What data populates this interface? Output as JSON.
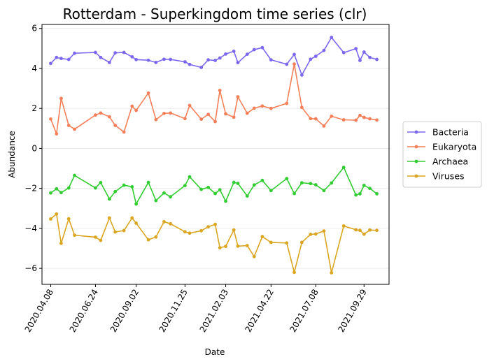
{
  "chart_data": {
    "type": "line",
    "title": "Rotterdam - Superkingdom time series (clr)",
    "xlabel": "Date",
    "ylabel": "Abundance",
    "ylim": [
      -6.8,
      6.2
    ],
    "yticks": [
      -6,
      -4,
      -2,
      0,
      2,
      4,
      6
    ],
    "xlim": [
      "2020-03-24",
      "2021-11-11"
    ],
    "xticks": [
      "2020.04.08",
      "2020.06.24",
      "2020.09.02",
      "2020.11.25",
      "2021.02.03",
      "2021.04.22",
      "2021.07.08",
      "2021.09.29"
    ],
    "grid": "horizontal",
    "legend_position": "outside-right",
    "x": [
      "2020-04-08",
      "2020-04-18",
      "2020-04-26",
      "2020-05-09",
      "2020-05-19",
      "2020-06-24",
      "2020-07-03",
      "2020-07-18",
      "2020-07-28",
      "2020-08-12",
      "2020-08-26",
      "2020-09-02",
      "2020-09-23",
      "2020-10-06",
      "2020-10-20",
      "2020-10-31",
      "2020-11-25",
      "2020-12-03",
      "2020-12-23",
      "2021-01-04",
      "2021-01-16",
      "2021-01-24",
      "2021-02-03",
      "2021-02-17",
      "2021-02-24",
      "2021-03-12",
      "2021-03-24",
      "2021-04-07",
      "2021-04-22",
      "2021-05-19",
      "2021-06-01",
      "2021-06-14",
      "2021-06-29",
      "2021-07-08",
      "2021-07-22",
      "2021-08-04",
      "2021-08-25",
      "2021-09-15",
      "2021-09-22",
      "2021-09-29",
      "2021-10-09",
      "2021-10-21"
    ],
    "series": [
      {
        "name": "Bacteria",
        "color": "#7b68ee",
        "values": [
          4.25,
          4.55,
          4.5,
          4.45,
          4.76,
          4.8,
          4.55,
          4.3,
          4.78,
          4.8,
          4.58,
          4.44,
          4.41,
          4.3,
          4.46,
          4.45,
          4.33,
          4.2,
          4.05,
          4.43,
          4.4,
          4.52,
          4.72,
          4.86,
          4.29,
          4.71,
          4.94,
          5.04,
          4.43,
          4.21,
          4.7,
          3.67,
          4.46,
          4.61,
          4.9,
          5.55,
          4.79,
          4.99,
          4.4,
          4.82,
          4.55,
          4.45
        ]
      },
      {
        "name": "Eukaryota",
        "color": "#f4805a",
        "values": [
          1.47,
          0.73,
          2.5,
          1.15,
          0.96,
          1.67,
          1.77,
          1.58,
          1.15,
          0.82,
          2.11,
          1.9,
          2.77,
          1.44,
          1.75,
          1.77,
          1.49,
          2.15,
          1.46,
          1.7,
          1.34,
          2.9,
          1.73,
          1.56,
          2.58,
          1.76,
          2.01,
          2.12,
          2.0,
          2.25,
          4.22,
          2.05,
          1.49,
          1.48,
          1.12,
          1.61,
          1.43,
          1.41,
          1.65,
          1.55,
          1.48,
          1.42
        ]
      },
      {
        "name": "Archaea",
        "color": "#32cd32",
        "values": [
          -2.23,
          -2.02,
          -2.21,
          -1.98,
          -1.35,
          -1.98,
          -1.71,
          -2.53,
          -2.16,
          -1.84,
          -1.92,
          -2.78,
          -1.7,
          -2.61,
          -2.23,
          -2.42,
          -1.86,
          -1.42,
          -2.05,
          -1.95,
          -2.26,
          -2.07,
          -2.64,
          -1.7,
          -1.75,
          -2.38,
          -1.83,
          -1.6,
          -2.11,
          -1.51,
          -2.26,
          -1.72,
          -1.76,
          -1.82,
          -2.11,
          -1.73,
          -0.95,
          -2.33,
          -2.27,
          -1.85,
          -2.0,
          -2.27
        ]
      },
      {
        "name": "Viruses",
        "color": "#daa520",
        "values": [
          -3.53,
          -3.28,
          -4.75,
          -3.52,
          -4.34,
          -4.44,
          -4.6,
          -3.48,
          -4.18,
          -4.11,
          -3.48,
          -3.74,
          -4.57,
          -4.43,
          -3.67,
          -3.77,
          -4.17,
          -4.24,
          -4.12,
          -3.92,
          -3.8,
          -4.97,
          -4.9,
          -4.08,
          -4.89,
          -4.86,
          -5.41,
          -4.41,
          -4.7,
          -4.73,
          -6.2,
          -4.7,
          -4.3,
          -4.28,
          -4.13,
          -6.22,
          -3.88,
          -4.07,
          -4.1,
          -4.29,
          -4.08,
          -4.1
        ]
      }
    ]
  }
}
